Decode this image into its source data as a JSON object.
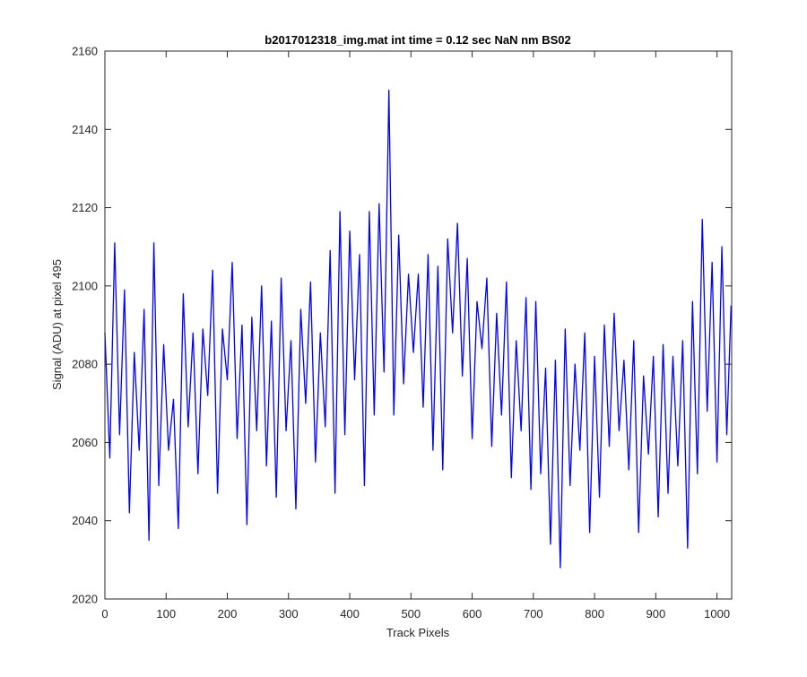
{
  "chart_data": {
    "type": "line",
    "title": "b2017012318_img.mat int time = 0.12 sec  NaN nm BS02",
    "xlabel": "Track Pixels",
    "ylabel": "Signal (ADU) at pixel 495",
    "xlim": [
      0,
      1024
    ],
    "ylim": [
      2020,
      2160
    ],
    "xticks": [
      0,
      100,
      200,
      300,
      400,
      500,
      600,
      700,
      800,
      900,
      1000
    ],
    "yticks": [
      2020,
      2040,
      2060,
      2080,
      2100,
      2120,
      2140,
      2160
    ],
    "grid": false,
    "line_color": "#0000ff",
    "series": [
      {
        "x": [
          0,
          8,
          16,
          24,
          32,
          40,
          48,
          56,
          64,
          72,
          80,
          88,
          96,
          104,
          112,
          120,
          128,
          136,
          144,
          152,
          160,
          168,
          176,
          184,
          192,
          200,
          208,
          216,
          224,
          232,
          240,
          248,
          256,
          264,
          272,
          280,
          288,
          296,
          304,
          312,
          320,
          328,
          336,
          344,
          352,
          360,
          368,
          376,
          384,
          392,
          400,
          408,
          416,
          424,
          432,
          440,
          448,
          456,
          464,
          472,
          480,
          488,
          496,
          504,
          512,
          520,
          528,
          536,
          544,
          552,
          560,
          568,
          576,
          584,
          592,
          600,
          608,
          616,
          624,
          632,
          640,
          648,
          656,
          664,
          672,
          680,
          688,
          696,
          704,
          712,
          720,
          728,
          736,
          744,
          752,
          760,
          768,
          776,
          784,
          792,
          800,
          808,
          816,
          824,
          832,
          840,
          848,
          856,
          864,
          872,
          880,
          888,
          896,
          904,
          912,
          920,
          928,
          936,
          944,
          952,
          960,
          968,
          976,
          984,
          992,
          1000,
          1008,
          1016,
          1023
        ],
        "values": [
          2088,
          2056,
          2111,
          2062,
          2099,
          2042,
          2083,
          2058,
          2094,
          2035,
          2111,
          2049,
          2085,
          2058,
          2071,
          2038,
          2098,
          2064,
          2088,
          2052,
          2089,
          2072,
          2104,
          2047,
          2089,
          2076,
          2106,
          2061,
          2090,
          2039,
          2092,
          2063,
          2100,
          2054,
          2091,
          2046,
          2102,
          2063,
          2086,
          2043,
          2094,
          2070,
          2101,
          2055,
          2088,
          2064,
          2109,
          2047,
          2119,
          2062,
          2114,
          2076,
          2108,
          2049,
          2119,
          2067,
          2121,
          2078,
          2150,
          2067,
          2113,
          2075,
          2103,
          2083,
          2103,
          2069,
          2108,
          2058,
          2105,
          2053,
          2112,
          2088,
          2116,
          2077,
          2107,
          2061,
          2096,
          2084,
          2102,
          2059,
          2093,
          2067,
          2101,
          2051,
          2086,
          2063,
          2097,
          2048,
          2096,
          2052,
          2079,
          2034,
          2081,
          2028,
          2089,
          2049,
          2080,
          2058,
          2088,
          2037,
          2082,
          2046,
          2090,
          2059,
          2093,
          2063,
          2081,
          2053,
          2086,
          2037,
          2077,
          2057,
          2082,
          2041,
          2085,
          2047,
          2082,
          2054,
          2086,
          2033,
          2096,
          2052,
          2117,
          2068,
          2106,
          2055,
          2110,
          2062,
          2095
        ]
      }
    ]
  }
}
